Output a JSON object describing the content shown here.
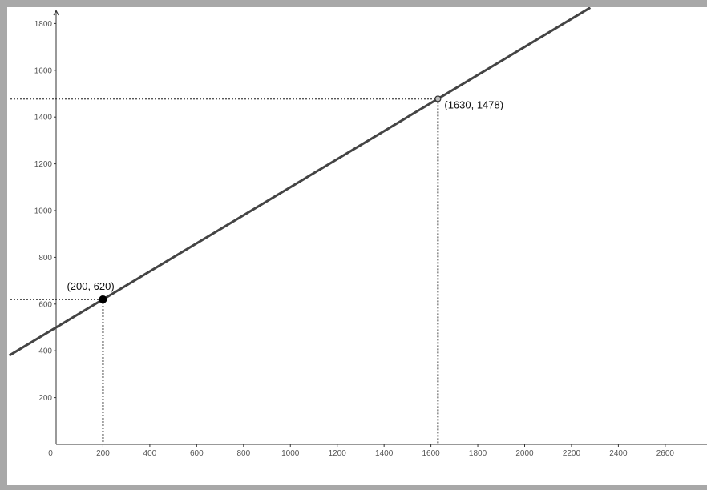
{
  "chart_data": {
    "type": "line",
    "title": "",
    "xlabel": "",
    "ylabel": "",
    "xlim": [
      0,
      2800
    ],
    "ylim": [
      0,
      1800
    ],
    "grid": false,
    "x_ticks": [
      0,
      200,
      400,
      600,
      800,
      1000,
      1200,
      1400,
      1600,
      1800,
      2000,
      2200,
      2400,
      2600
    ],
    "y_ticks": [
      200,
      400,
      600,
      800,
      1000,
      1200,
      1400,
      1600,
      1800
    ],
    "line": {
      "slope": 0.6,
      "intercept": 500
    },
    "series": [
      {
        "x": [
          -200,
          2280
        ],
        "y": [
          380,
          1868
        ]
      }
    ],
    "points": [
      {
        "x": 200,
        "y": 620,
        "label": "(200, 620)",
        "style": "filled"
      },
      {
        "x": 1630,
        "y": 1478,
        "label": "(1630, 1478)",
        "style": "open"
      }
    ],
    "colors": {
      "line": "#444444",
      "guides": "#555555",
      "axis": "#333333"
    }
  }
}
